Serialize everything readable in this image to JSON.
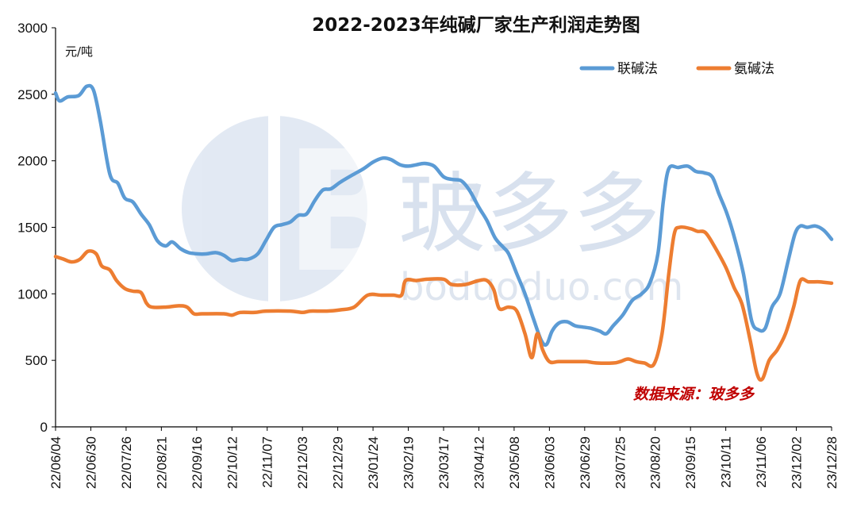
{
  "chart_data": {
    "type": "line",
    "title": "2022-2023年纯碱厂家生产利润走势图",
    "ylabel": "元/吨",
    "ylim": [
      0,
      3000
    ],
    "yticks": [
      0,
      500,
      1000,
      1500,
      2000,
      2500,
      3000
    ],
    "x_tick_labels": [
      "22/06/04",
      "22/06/30",
      "22/07/26",
      "22/08/21",
      "22/09/16",
      "22/10/12",
      "22/11/07",
      "22/12/03",
      "22/12/29",
      "23/01/24",
      "23/02/19",
      "23/03/17",
      "23/04/12",
      "23/05/08",
      "23/06/03",
      "23/06/29",
      "23/07/25",
      "23/08/20",
      "23/09/15",
      "23/10/11",
      "23/11/06",
      "23/12/02",
      "23/12/28"
    ],
    "x_start": "22/06/04",
    "x_end": "23/12/28",
    "legend_position": "top-right",
    "grid": false,
    "source_note": "数据来源：玻多多",
    "series": [
      {
        "name": "联碱法",
        "color": "#5B9BD5",
        "points": [
          [
            "22/06/04",
            2510
          ],
          [
            "22/06/07",
            2450
          ],
          [
            "22/06/13",
            2480
          ],
          [
            "22/06/21",
            2490
          ],
          [
            "22/06/27",
            2560
          ],
          [
            "22/07/02",
            2530
          ],
          [
            "22/07/07",
            2300
          ],
          [
            "22/07/14",
            1900
          ],
          [
            "22/07/20",
            1830
          ],
          [
            "22/07/25",
            1720
          ],
          [
            "22/07/31",
            1690
          ],
          [
            "22/08/06",
            1600
          ],
          [
            "22/08/12",
            1520
          ],
          [
            "22/08/18",
            1400
          ],
          [
            "22/08/24",
            1360
          ],
          [
            "22/08/29",
            1390
          ],
          [
            "22/09/04",
            1340
          ],
          [
            "22/09/10",
            1310
          ],
          [
            "22/09/17",
            1300
          ],
          [
            "22/09/23",
            1300
          ],
          [
            "22/09/30",
            1310
          ],
          [
            "22/10/06",
            1290
          ],
          [
            "22/10/12",
            1250
          ],
          [
            "22/10/18",
            1260
          ],
          [
            "22/10/24",
            1260
          ],
          [
            "22/10/31",
            1300
          ],
          [
            "22/11/06",
            1400
          ],
          [
            "22/11/12",
            1500
          ],
          [
            "22/11/18",
            1520
          ],
          [
            "22/11/24",
            1540
          ],
          [
            "22/11/30",
            1590
          ],
          [
            "22/12/06",
            1600
          ],
          [
            "22/12/12",
            1700
          ],
          [
            "22/12/18",
            1780
          ],
          [
            "22/12/24",
            1790
          ],
          [
            "22/12/31",
            1840
          ],
          [
            "23/01/10",
            1900
          ],
          [
            "23/01/17",
            1940
          ],
          [
            "23/01/24",
            1990
          ],
          [
            "23/01/31",
            2020
          ],
          [
            "23/02/06",
            2010
          ],
          [
            "23/02/13",
            1970
          ],
          [
            "23/02/19",
            1960
          ],
          [
            "23/02/25",
            1970
          ],
          [
            "23/03/03",
            1980
          ],
          [
            "23/03/10",
            1960
          ],
          [
            "23/03/17",
            1880
          ],
          [
            "23/03/23",
            1860
          ],
          [
            "23/03/30",
            1850
          ],
          [
            "23/04/05",
            1780
          ],
          [
            "23/04/12",
            1650
          ],
          [
            "23/04/18",
            1550
          ],
          [
            "23/04/24",
            1420
          ],
          [
            "23/04/30",
            1350
          ],
          [
            "23/05/04",
            1300
          ],
          [
            "23/05/10",
            1150
          ],
          [
            "23/05/16",
            1000
          ],
          [
            "23/05/22",
            820
          ],
          [
            "23/05/28",
            650
          ],
          [
            "23/06/01",
            620
          ],
          [
            "23/06/05",
            720
          ],
          [
            "23/06/10",
            780
          ],
          [
            "23/06/16",
            790
          ],
          [
            "23/06/22",
            760
          ],
          [
            "23/06/28",
            750
          ],
          [
            "23/07/04",
            740
          ],
          [
            "23/07/10",
            720
          ],
          [
            "23/07/15",
            700
          ],
          [
            "23/07/20",
            760
          ],
          [
            "23/07/27",
            840
          ],
          [
            "23/08/03",
            950
          ],
          [
            "23/08/10",
            1000
          ],
          [
            "23/08/16",
            1080
          ],
          [
            "23/08/22",
            1300
          ],
          [
            "23/08/26",
            1700
          ],
          [
            "23/08/30",
            1940
          ],
          [
            "23/09/06",
            1950
          ],
          [
            "23/09/13",
            1960
          ],
          [
            "23/09/19",
            1920
          ],
          [
            "23/09/25",
            1910
          ],
          [
            "23/10/01",
            1880
          ],
          [
            "23/10/06",
            1750
          ],
          [
            "23/10/12",
            1600
          ],
          [
            "23/10/18",
            1400
          ],
          [
            "23/10/24",
            1150
          ],
          [
            "23/10/30",
            800
          ],
          [
            "23/11/04",
            730
          ],
          [
            "23/11/09",
            740
          ],
          [
            "23/11/14",
            900
          ],
          [
            "23/11/20",
            1000
          ],
          [
            "23/11/26",
            1250
          ],
          [
            "23/12/01",
            1450
          ],
          [
            "23/12/05",
            1510
          ],
          [
            "23/12/10",
            1500
          ],
          [
            "23/12/16",
            1510
          ],
          [
            "23/12/22",
            1480
          ],
          [
            "23/12/28",
            1410
          ]
        ]
      },
      {
        "name": "氨碱法",
        "color": "#ED7D31",
        "points": [
          [
            "22/06/04",
            1280
          ],
          [
            "22/06/10",
            1260
          ],
          [
            "22/06/16",
            1240
          ],
          [
            "22/06/22",
            1260
          ],
          [
            "22/06/28",
            1320
          ],
          [
            "22/07/04",
            1300
          ],
          [
            "22/07/08",
            1210
          ],
          [
            "22/07/14",
            1180
          ],
          [
            "22/07/19",
            1100
          ],
          [
            "22/07/25",
            1040
          ],
          [
            "22/07/31",
            1020
          ],
          [
            "22/08/06",
            1010
          ],
          [
            "22/08/10",
            930
          ],
          [
            "22/08/14",
            900
          ],
          [
            "22/08/24",
            900
          ],
          [
            "22/09/03",
            910
          ],
          [
            "22/09/09",
            900
          ],
          [
            "22/09/14",
            850
          ],
          [
            "22/09/20",
            850
          ],
          [
            "22/10/06",
            850
          ],
          [
            "22/10/12",
            840
          ],
          [
            "22/10/18",
            860
          ],
          [
            "22/10/29",
            860
          ],
          [
            "22/11/06",
            870
          ],
          [
            "22/11/24",
            870
          ],
          [
            "22/12/03",
            860
          ],
          [
            "22/12/09",
            870
          ],
          [
            "22/12/21",
            870
          ],
          [
            "22/12/31",
            880
          ],
          [
            "23/01/10",
            900
          ],
          [
            "23/01/20",
            990
          ],
          [
            "23/01/30",
            990
          ],
          [
            "23/02/08",
            990
          ],
          [
            "23/02/14",
            990
          ],
          [
            "23/02/17",
            1100
          ],
          [
            "23/02/25",
            1100
          ],
          [
            "23/03/05",
            1110
          ],
          [
            "23/03/17",
            1110
          ],
          [
            "23/03/23",
            1070
          ],
          [
            "23/04/02",
            1070
          ],
          [
            "23/04/12",
            1100
          ],
          [
            "23/04/18",
            1100
          ],
          [
            "23/04/23",
            1030
          ],
          [
            "23/04/27",
            890
          ],
          [
            "23/05/04",
            900
          ],
          [
            "23/05/10",
            870
          ],
          [
            "23/05/16",
            700
          ],
          [
            "23/05/21",
            520
          ],
          [
            "23/05/25",
            700
          ],
          [
            "23/05/29",
            580
          ],
          [
            "23/06/03",
            490
          ],
          [
            "23/06/10",
            490
          ],
          [
            "23/06/22",
            490
          ],
          [
            "23/06/30",
            490
          ],
          [
            "23/07/08",
            480
          ],
          [
            "23/07/20",
            480
          ],
          [
            "23/07/25",
            490
          ],
          [
            "23/07/31",
            510
          ],
          [
            "23/08/06",
            490
          ],
          [
            "23/08/12",
            480
          ],
          [
            "23/08/19",
            470
          ],
          [
            "23/08/25",
            700
          ],
          [
            "23/08/30",
            1150
          ],
          [
            "23/09/03",
            1450
          ],
          [
            "23/09/07",
            1500
          ],
          [
            "23/09/15",
            1490
          ],
          [
            "23/09/20",
            1470
          ],
          [
            "23/09/26",
            1460
          ],
          [
            "23/10/03",
            1350
          ],
          [
            "23/10/11",
            1200
          ],
          [
            "23/10/17",
            1050
          ],
          [
            "23/10/23",
            920
          ],
          [
            "23/10/29",
            650
          ],
          [
            "23/11/03",
            400
          ],
          [
            "23/11/07",
            360
          ],
          [
            "23/11/12",
            500
          ],
          [
            "23/11/18",
            580
          ],
          [
            "23/11/24",
            700
          ],
          [
            "23/11/30",
            900
          ],
          [
            "23/12/05",
            1100
          ],
          [
            "23/12/11",
            1090
          ],
          [
            "23/12/19",
            1090
          ],
          [
            "23/12/28",
            1080
          ]
        ]
      }
    ]
  },
  "watermark": {
    "logo_letter": "B",
    "text": "玻多多",
    "domain_text": "boduoduo.com"
  }
}
